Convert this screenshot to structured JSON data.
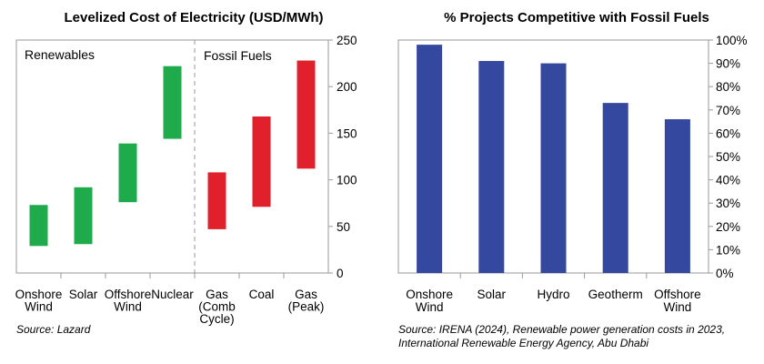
{
  "chart_data": [
    {
      "type": "bar",
      "subtype": "floating-range",
      "title": "Levelized Cost of Electricity (USD/MWh)",
      "xlabel": "",
      "ylabel": "",
      "ylim": [
        0,
        250
      ],
      "yticks": [
        "0",
        "50",
        "100",
        "150",
        "200",
        "250"
      ],
      "y_axis_side": "right",
      "grid": false,
      "groups": [
        {
          "name": "Renewables",
          "color": "#1faa4b"
        },
        {
          "name": "Fossil Fuels",
          "color": "#e0202a"
        }
      ],
      "categories": [
        {
          "label": [
            "Onshore",
            "Wind"
          ],
          "low": 29,
          "high": 73,
          "group": 0
        },
        {
          "label": [
            "Solar"
          ],
          "low": 31,
          "high": 92,
          "group": 0
        },
        {
          "label": [
            "Offshore",
            "Wind"
          ],
          "low": 76,
          "high": 139,
          "group": 0
        },
        {
          "label": [
            "Nuclear"
          ],
          "low": 144,
          "high": 222,
          "group": 0
        },
        {
          "label": [
            "Gas",
            "(Comb",
            "Cycle)"
          ],
          "low": 47,
          "high": 108,
          "group": 1
        },
        {
          "label": [
            "Coal"
          ],
          "low": 71,
          "high": 168,
          "group": 1
        },
        {
          "label": [
            "Gas",
            "(Peak)"
          ],
          "low": 112,
          "high": 228,
          "group": 1
        }
      ],
      "source": "Source: Lazard"
    },
    {
      "type": "bar",
      "title": "% Projects Competitive with Fossil Fuels",
      "xlabel": "",
      "ylabel": "",
      "ylim": [
        0,
        100
      ],
      "yticks": [
        "0%",
        "10%",
        "20%",
        "30%",
        "40%",
        "50%",
        "60%",
        "70%",
        "80%",
        "90%",
        "100%"
      ],
      "y_axis_side": "right",
      "grid": false,
      "color": "#3548a0",
      "categories": [
        {
          "label": [
            "Onshore",
            "Wind"
          ],
          "value": 98
        },
        {
          "label": [
            "Solar"
          ],
          "value": 91
        },
        {
          "label": [
            "Hydro"
          ],
          "value": 90
        },
        {
          "label": [
            "Geotherm"
          ],
          "value": 73
        },
        {
          "label": [
            "Offshore",
            "Wind"
          ],
          "value": 66
        }
      ],
      "source_lines": [
        "Source: IRENA (2024), Renewable power generation costs in 2023,",
        "International Renewable Energy Agency, Abu Dhabi"
      ]
    }
  ]
}
